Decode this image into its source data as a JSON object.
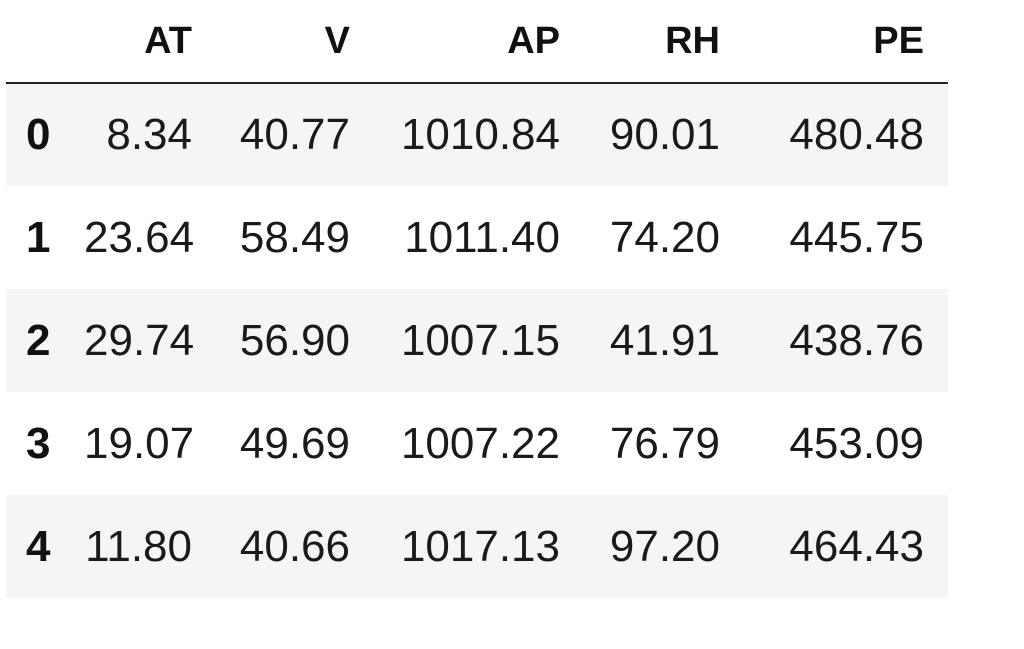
{
  "dataframe": {
    "columns": [
      "",
      "AT",
      "V",
      "AP",
      "RH",
      "PE"
    ],
    "rows": [
      {
        "index": "0",
        "AT": "8.34",
        "V": "40.77",
        "AP": "1010.84",
        "RH": "90.01",
        "PE": "480.48"
      },
      {
        "index": "1",
        "AT": "23.64",
        "V": "58.49",
        "AP": "1011.40",
        "RH": "74.20",
        "PE": "445.75"
      },
      {
        "index": "2",
        "AT": "29.74",
        "V": "56.90",
        "AP": "1007.15",
        "RH": "41.91",
        "PE": "438.76"
      },
      {
        "index": "3",
        "AT": "19.07",
        "V": "49.69",
        "AP": "1007.22",
        "RH": "76.79",
        "PE": "453.09"
      },
      {
        "index": "4",
        "AT": "11.80",
        "V": "40.66",
        "AP": "1017.13",
        "RH": "97.20",
        "PE": "464.43"
      }
    ]
  },
  "colors": {
    "stripe": "#f5f5f5",
    "header_rule": "#222222"
  }
}
